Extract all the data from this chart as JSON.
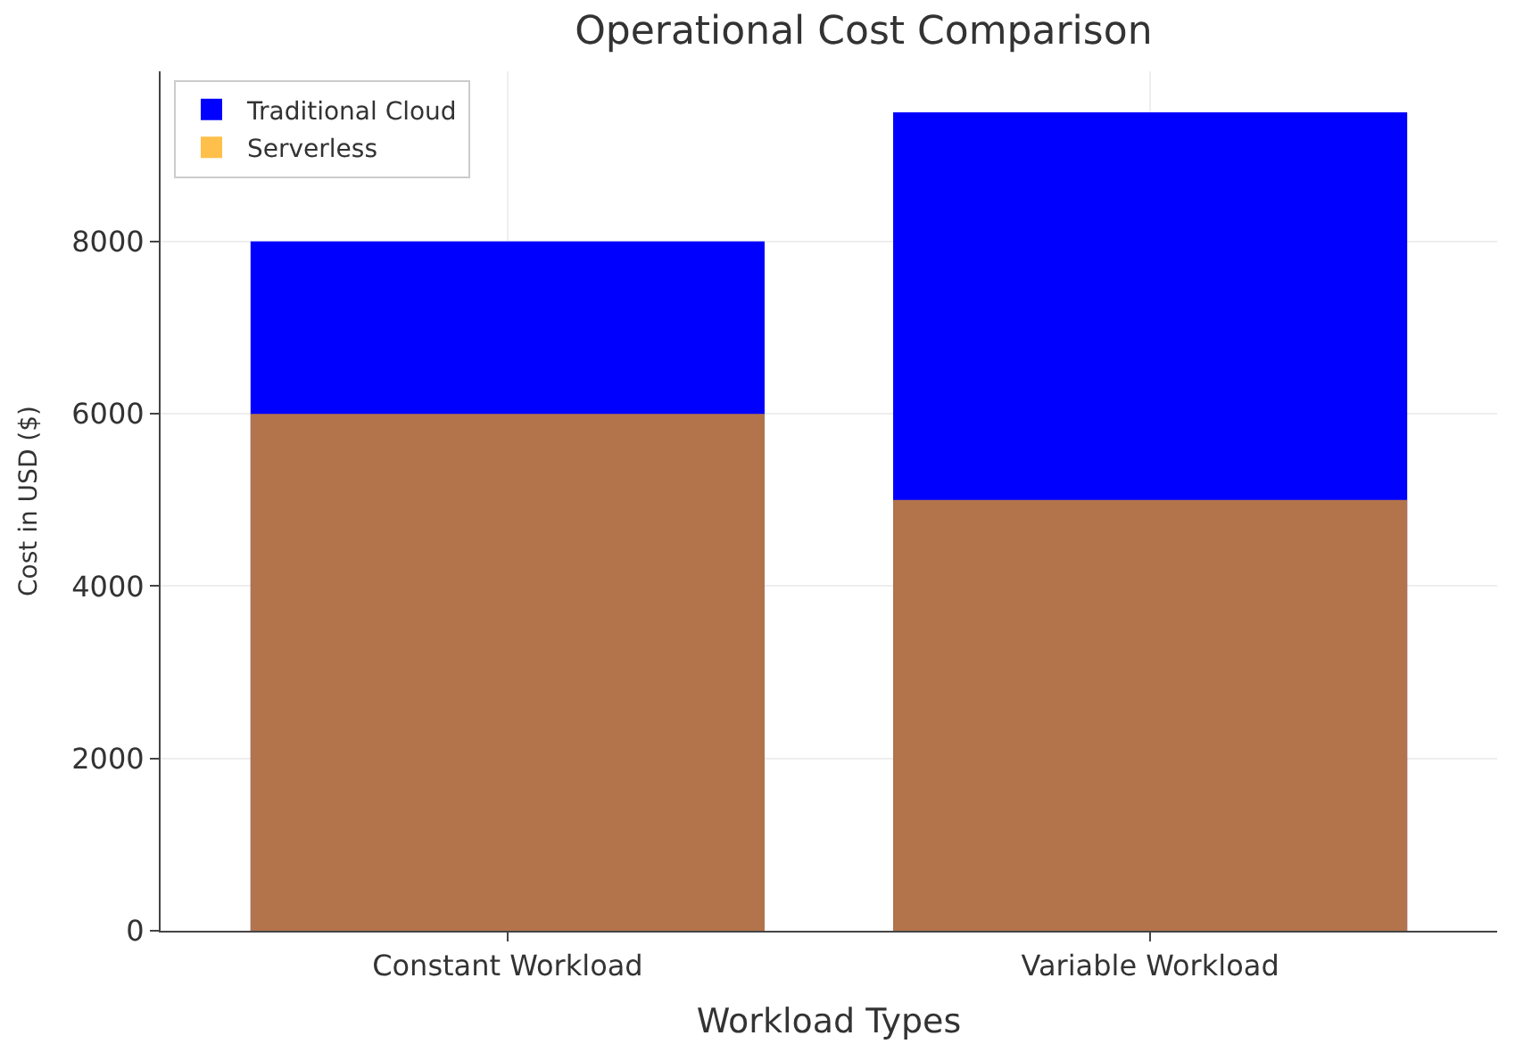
{
  "chart_data": {
    "type": "bar",
    "title": "Operational Cost Comparison",
    "xlabel": "Workload Types",
    "ylabel": "Cost in USD ($)",
    "categories": [
      "Constant Workload",
      "Variable Workload"
    ],
    "series": [
      {
        "name": "Traditional Cloud",
        "color": "#0000ff",
        "values": [
          8000,
          9500
        ]
      },
      {
        "name": "Serverless",
        "color": "#ffa500",
        "values": [
          6000,
          5000
        ]
      }
    ],
    "ylim": [
      0,
      9975
    ],
    "yticks": [
      0,
      2000,
      4000,
      6000,
      8000
    ],
    "grid": true,
    "legend": "top left"
  }
}
